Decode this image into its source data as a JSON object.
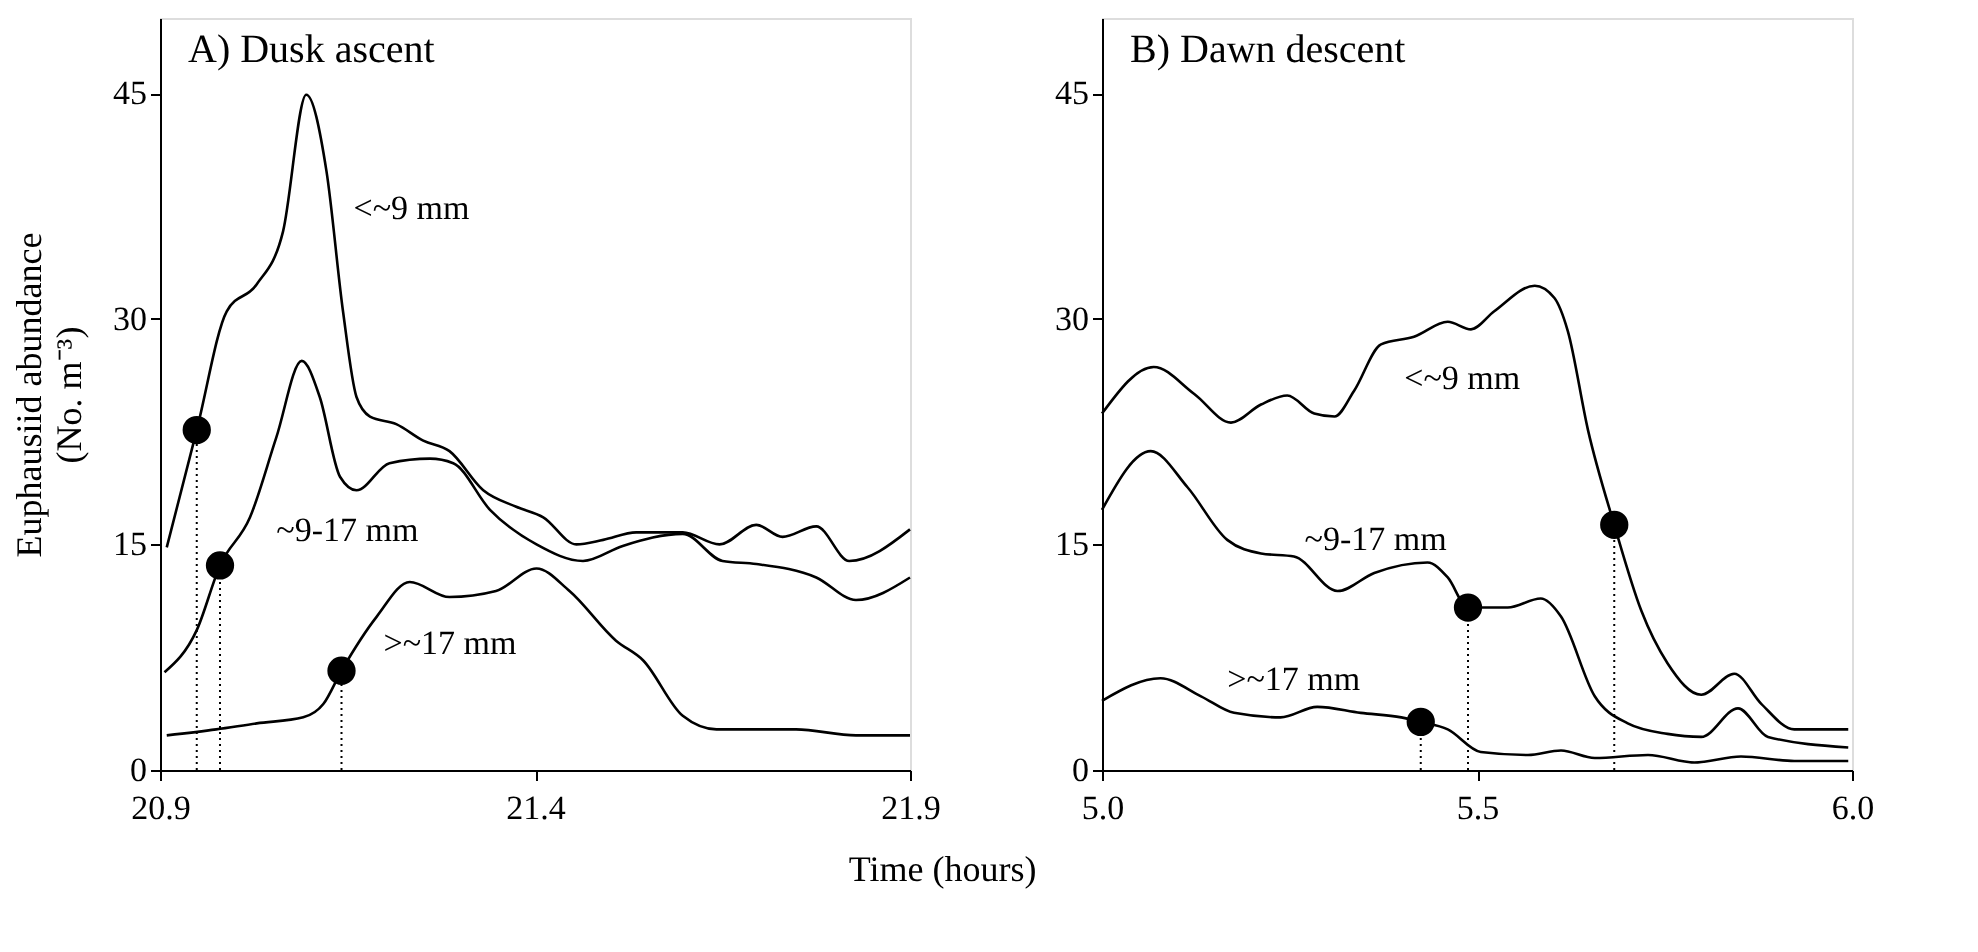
{
  "chart_data": [
    {
      "type": "line",
      "title": "A) Dusk ascent",
      "xlabel": "Time (hours)",
      "ylabel": "Euphausiid abundance (No. m⁻³)",
      "xlim": [
        20.9,
        21.9
      ],
      "xticks": [
        20.9,
        21.4,
        21.9
      ],
      "ylim": [
        0,
        50
      ],
      "yticks": [
        0,
        15,
        30,
        45
      ],
      "series": [
        {
          "name": "<~9 mm",
          "color": "#000000",
          "x": [
            20.909,
            20.949,
            20.989,
            21.029,
            21.064,
            21.095,
            21.122,
            21.144,
            21.162,
            21.18,
            21.215,
            21.251,
            21.286,
            21.331,
            21.375,
            21.411,
            21.455,
            21.491,
            21.535,
            21.597,
            21.646,
            21.695,
            21.73,
            21.775,
            21.819,
            21.9
          ],
          "values": [
            14.8,
            22.6,
            30.5,
            32.3,
            35.8,
            44.9,
            39.8,
            30.5,
            24.8,
            23.5,
            23.0,
            21.9,
            21.2,
            18.6,
            17.5,
            16.8,
            15.0,
            15.3,
            15.8,
            15.8,
            15.0,
            16.3,
            15.5,
            16.2,
            13.9,
            16.0
          ]
        },
        {
          "name": "~9-17 mm",
          "color": "#000000",
          "x": [
            20.906,
            20.949,
            20.98,
            21.02,
            21.055,
            21.089,
            21.113,
            21.14,
            21.162,
            21.206,
            21.26,
            21.291,
            21.34,
            21.402,
            21.464,
            21.517,
            21.597,
            21.65,
            21.695,
            21.775,
            21.828,
            21.9
          ],
          "values": [
            6.5,
            9.3,
            13.6,
            16.8,
            22.1,
            27.2,
            24.8,
            19.5,
            18.6,
            20.4,
            20.7,
            20.4,
            17.3,
            15.0,
            13.9,
            14.9,
            15.7,
            13.9,
            13.7,
            12.8,
            11.3,
            12.8
          ]
        },
        {
          "name": ">~17 mm",
          "color": "#000000",
          "x": [
            20.909,
            20.975,
            21.029,
            21.091,
            21.118,
            21.142,
            21.189,
            21.233,
            21.286,
            21.348,
            21.402,
            21.446,
            21.508,
            21.544,
            21.597,
            21.642,
            21.748,
            21.828,
            21.9
          ],
          "values": [
            2.3,
            2.7,
            3.1,
            3.5,
            4.4,
            6.6,
            10.2,
            12.5,
            11.5,
            11.9,
            13.4,
            11.9,
            8.6,
            7.3,
            3.6,
            2.7,
            2.7,
            2.3,
            2.3
          ]
        },
        {
          "type": "scatter",
          "marker": "circle",
          "color": "#000000",
          "x": [
            20.949,
            20.98,
            21.142
          ],
          "values": [
            22.6,
            13.6,
            6.6
          ],
          "errors": [
            [
              0,
              22.6
            ],
            [
              0,
              13.6
            ],
            [
              0,
              6.6
            ]
          ]
        }
      ]
    },
    {
      "type": "line",
      "title": "B) Dawn descent",
      "xlim": [
        5.0,
        6.0
      ],
      "xticks": [
        {
          "value": 5,
          "label": "5.0"
        },
        5.5,
        {
          "value": 6,
          "label": "6.0"
        }
      ],
      "ylim": [
        0,
        50
      ],
      "yticks": [
        0,
        15,
        30,
        45
      ],
      "series": [
        {
          "name": "<~9 mm",
          "color": "#000000",
          "x": [
            5.0,
            5.069,
            5.123,
            5.172,
            5.212,
            5.247,
            5.283,
            5.31,
            5.336,
            5.372,
            5.416,
            5.461,
            5.492,
            5.523,
            5.577,
            5.603,
            5.621,
            5.648,
            5.683,
            5.719,
            5.754,
            5.799,
            5.843,
            5.879,
            5.923,
            5.995
          ],
          "values": [
            23.7,
            26.8,
            25.0,
            23.1,
            24.3,
            24.9,
            23.7,
            23.5,
            25.2,
            28.3,
            28.8,
            29.8,
            29.3,
            30.5,
            32.2,
            31.4,
            29.2,
            22.6,
            16.3,
            10.6,
            7.1,
            5.0,
            6.4,
            4.4,
            2.7,
            2.7
          ]
        },
        {
          "name": "~9-17 mm",
          "color": "#000000",
          "x": [
            5.0,
            5.065,
            5.114,
            5.167,
            5.212,
            5.256,
            5.314,
            5.363,
            5.434,
            5.461,
            5.488,
            5.541,
            5.585,
            5.612,
            5.657,
            5.701,
            5.754,
            5.799,
            5.848,
            5.888,
            5.995
          ],
          "values": [
            17.3,
            21.2,
            18.8,
            15.3,
            14.4,
            14.2,
            11.9,
            13.1,
            13.8,
            12.8,
            10.8,
            10.8,
            11.4,
            10.2,
            4.9,
            3.1,
            2.4,
            2.2,
            4.1,
            2.2,
            1.5
          ]
        },
        {
          "name": ">~17 mm",
          "color": "#000000",
          "x": [
            5.0,
            5.078,
            5.132,
            5.176,
            5.238,
            5.287,
            5.345,
            5.399,
            5.425,
            5.461,
            5.505,
            5.568,
            5.612,
            5.657,
            5.728,
            5.79,
            5.852,
            5.923,
            5.995
          ],
          "values": [
            4.6,
            6.1,
            4.9,
            3.8,
            3.5,
            4.2,
            3.8,
            3.5,
            3.2,
            2.7,
            1.2,
            1.0,
            1.3,
            0.8,
            1.0,
            0.5,
            0.9,
            0.6,
            0.6
          ]
        },
        {
          "type": "scatter",
          "marker": "circle",
          "color": "#000000",
          "x": [
            5.425,
            5.488,
            5.683
          ],
          "values": [
            3.2,
            10.8,
            16.3
          ],
          "errors": [
            [
              0,
              3.2
            ],
            [
              0,
              10.8
            ],
            [
              0,
              16.3
            ]
          ]
        }
      ]
    }
  ]
}
